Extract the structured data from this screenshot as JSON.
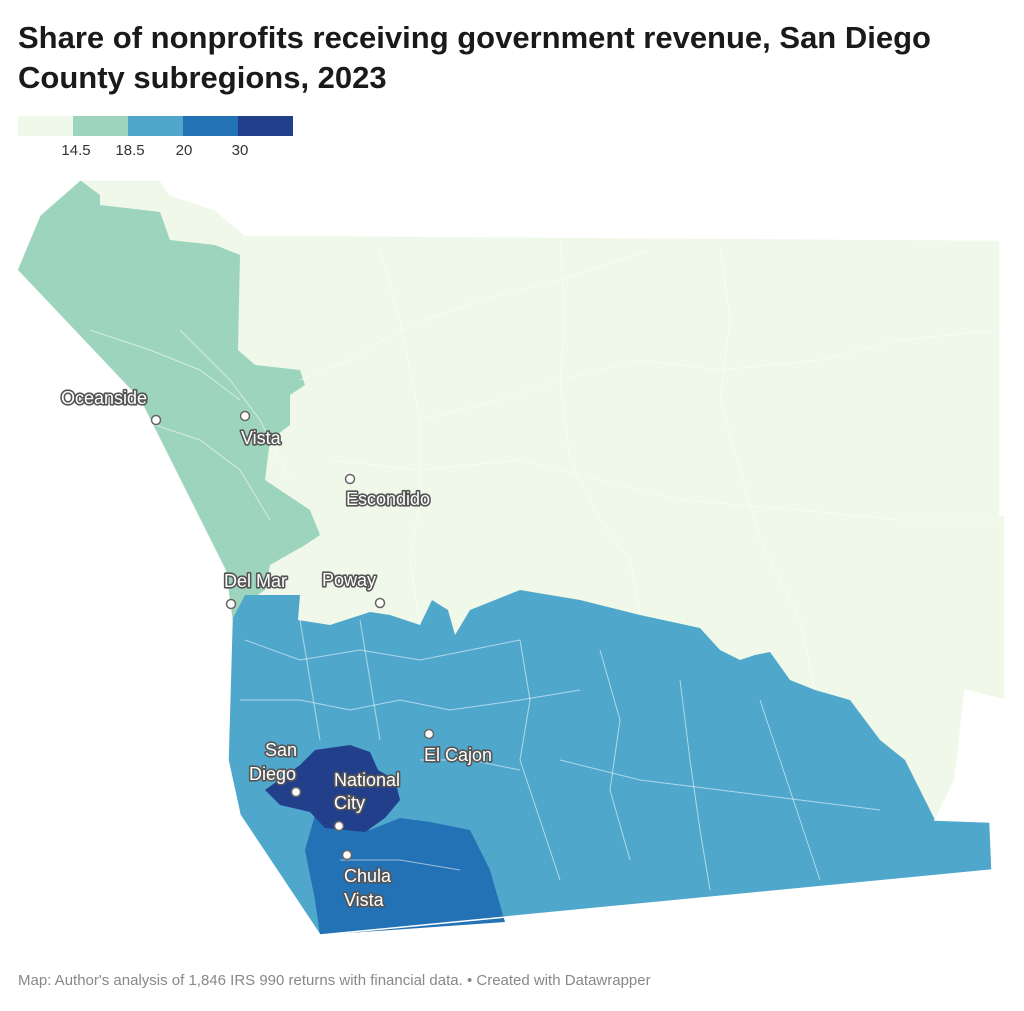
{
  "title": "Share of nonprofits receiving government revenue, San Diego County subregions, 2023",
  "legend": {
    "colors": [
      "#eff8e9",
      "#9dd4bd",
      "#4fa8cc",
      "#2272b5",
      "#223f8b"
    ],
    "ticks": [
      "14.5",
      "18.5",
      "20",
      "30"
    ]
  },
  "map_data": {
    "type": "choropleth",
    "region": "San Diego County",
    "classes": [
      {
        "range": "below 14.5",
        "color": "#eff8e9",
        "areas": "North County inland and East County backcountry"
      },
      {
        "range": "14.5 to 18.5",
        "color": "#9dd4bd",
        "areas": "North County coastal"
      },
      {
        "range": "18.5 to 20",
        "color": "#4fa8cc",
        "areas": "Central and East suburban"
      },
      {
        "range": "20 to 30",
        "color": "#2272b5",
        "areas": "South Bay"
      },
      {
        "range": "30 and above",
        "color": "#223f8b",
        "areas": "Central San Diego"
      }
    ]
  },
  "cities": {
    "oceanside": "Oceanside",
    "vista": "Vista",
    "escondido": "Escondido",
    "del_mar": "Del Mar",
    "poway": "Poway",
    "el_cajon": "El Cajon",
    "san_diego_1": "San",
    "san_diego_2": "Diego",
    "national_city_1": "National",
    "national_city_2": "City",
    "chula_vista_1": "Chula",
    "chula_vista_2": "Vista"
  },
  "footer": "Map: Author's analysis of 1,846 IRS 990 returns with financial data. • Created with Datawrapper"
}
